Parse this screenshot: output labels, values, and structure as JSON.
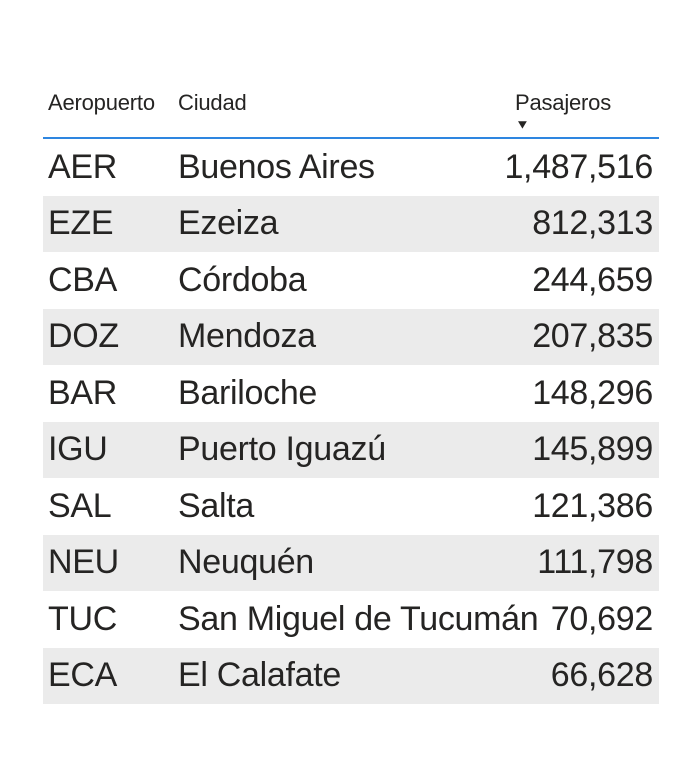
{
  "visual": {
    "type": "power-bi-table",
    "colors": {
      "header_underline": "#2e86e0",
      "band_row_background": "#ebebeb",
      "text": "#252423",
      "background": "#ffffff"
    },
    "header": {
      "columns": [
        "Aeropuerto",
        "Ciudad",
        "Pasajeros"
      ],
      "sort_column": "Pasajeros",
      "sort_direction": "desc",
      "sort_icon": "▼"
    },
    "rows": [
      {
        "code": "AER",
        "city": "Buenos Aires",
        "passengers": "1,487,516"
      },
      {
        "code": "EZE",
        "city": "Ezeiza",
        "passengers": "812,313"
      },
      {
        "code": "CBA",
        "city": "Córdoba",
        "passengers": "244,659"
      },
      {
        "code": "DOZ",
        "city": "Mendoza",
        "passengers": "207,835"
      },
      {
        "code": "BAR",
        "city": "Bariloche",
        "passengers": "148,296"
      },
      {
        "code": "IGU",
        "city": "Puerto Iguazú",
        "passengers": "145,899"
      },
      {
        "code": "SAL",
        "city": "Salta",
        "passengers": "121,386"
      },
      {
        "code": "NEU",
        "city": "Neuquén",
        "passengers": "111,798"
      },
      {
        "code": "TUC",
        "city": "San Miguel de Tucumán",
        "passengers": "70,692"
      },
      {
        "code": "ECA",
        "city": "El Calafate",
        "passengers": "66,628"
      }
    ]
  },
  "chart_data": {
    "type": "table",
    "columns": [
      "Aeropuerto",
      "Ciudad",
      "Pasajeros"
    ],
    "rows": [
      [
        "AER",
        "Buenos Aires",
        1487516
      ],
      [
        "EZE",
        "Ezeiza",
        812313
      ],
      [
        "CBA",
        "Córdoba",
        244659
      ],
      [
        "DOZ",
        "Mendoza",
        207835
      ],
      [
        "BAR",
        "Bariloche",
        148296
      ],
      [
        "IGU",
        "Puerto Iguazú",
        145899
      ],
      [
        "SAL",
        "Salta",
        121386
      ],
      [
        "NEU",
        "Neuquén",
        111798
      ],
      [
        "TUC",
        "San Miguel de Tucumán",
        70692
      ],
      [
        "ECA",
        "El Calafate",
        66628
      ]
    ],
    "sort": {
      "column": "Pasajeros",
      "direction": "desc"
    },
    "legend": "none",
    "grid": "banded-rows"
  }
}
